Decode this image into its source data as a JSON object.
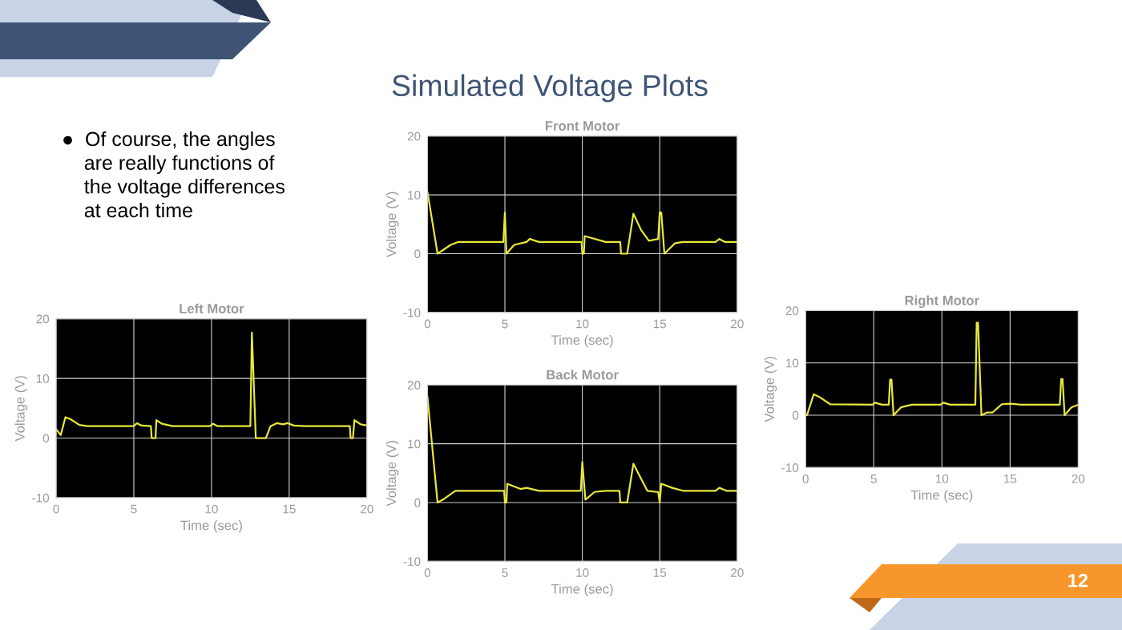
{
  "chart_data": [
    {
      "type": "other",
      "title": "Simulated Voltage Plots",
      "annotations": [
        "●  Of course, the angles\n    are really functions of\n    the voltage differences\n    at each time",
        "12"
      ]
    },
    {
      "type": "line",
      "title": "Left Motor",
      "xlabel": "Time (sec)",
      "ylabel": "Voltage (V)",
      "xlim": [
        0,
        20
      ],
      "ylim": [
        -10,
        20
      ],
      "xticks": [
        0,
        5,
        10,
        15,
        20
      ],
      "yticks": [
        -10,
        0,
        10,
        20
      ],
      "grid": true,
      "series": [
        {
          "color": "#e8e83a",
          "x": [
            0,
            0.3,
            0.6,
            0.9,
            1.5,
            2,
            5.0,
            5.2,
            5.5,
            6.1,
            6.15,
            6.4,
            6.45,
            6.8,
            7.5,
            9.9,
            10.1,
            10.4,
            12.5,
            12.6,
            12.85,
            13.5,
            13.8,
            14.2,
            14.6,
            14.9,
            15.3,
            16,
            18.9,
            18.95,
            19.1,
            19.2,
            19.6,
            20
          ],
          "values": [
            1.5,
            0.5,
            3.5,
            3.2,
            2.2,
            2.0,
            2.0,
            2.5,
            2.1,
            2.0,
            0,
            0,
            3.0,
            2.4,
            2.0,
            2.0,
            2.4,
            2.0,
            2.0,
            17.7,
            0,
            0,
            2.0,
            2.5,
            2.3,
            2.5,
            2.1,
            2.0,
            2.0,
            0,
            0,
            3.0,
            2.3,
            2.1
          ]
        }
      ]
    },
    {
      "type": "line",
      "title": "Front Motor",
      "xlabel": "Time (sec)",
      "ylabel": "Voltage (V)",
      "xlim": [
        0,
        20
      ],
      "ylim": [
        -10,
        20
      ],
      "xticks": [
        0,
        5,
        10,
        15,
        20
      ],
      "yticks": [
        -10,
        0,
        10,
        20
      ],
      "grid": true,
      "series": [
        {
          "color": "#e8e83a",
          "x": [
            0,
            0.65,
            1.5,
            2,
            4.9,
            5.0,
            5.1,
            5.6,
            6.4,
            6.6,
            7.2,
            9.95,
            10.0,
            10.1,
            10.15,
            11.5,
            12.45,
            12.5,
            12.9,
            13.3,
            13.8,
            14.3,
            14.9,
            15.0,
            15.1,
            15.3,
            16,
            16.5,
            18.6,
            18.85,
            19.2,
            20
          ],
          "values": [
            10.5,
            0,
            1.5,
            2.0,
            2.0,
            7.0,
            0,
            1.5,
            2.0,
            2.5,
            2.0,
            2.0,
            0,
            0,
            3.0,
            2.0,
            2.0,
            0,
            0,
            6.8,
            4.0,
            2.2,
            2.5,
            7.0,
            7.0,
            0,
            1.8,
            2.0,
            2.0,
            2.5,
            2.0,
            2.0
          ]
        }
      ]
    },
    {
      "type": "line",
      "title": "Back Motor",
      "xlabel": "Time (sec)",
      "ylabel": "Voltage (V)",
      "xlim": [
        0,
        20
      ],
      "ylim": [
        -10,
        20
      ],
      "xticks": [
        0,
        5,
        10,
        15,
        20
      ],
      "yticks": [
        -10,
        0,
        10,
        20
      ],
      "grid": true,
      "series": [
        {
          "color": "#e8e83a",
          "x": [
            0,
            0.65,
            1.0,
            1.8,
            4.95,
            5.0,
            5.1,
            5.15,
            6.0,
            6.4,
            7.2,
            9.9,
            10.0,
            10.2,
            10.8,
            11.5,
            12.4,
            12.45,
            12.9,
            13.3,
            13.8,
            14.2,
            14.8,
            14.9,
            15.0,
            15.1,
            15.8,
            16.5,
            18.6,
            18.85,
            19.3,
            20
          ],
          "values": [
            18,
            0,
            0.5,
            2.0,
            2.0,
            0,
            0,
            3.2,
            2.3,
            2.5,
            2.0,
            2.0,
            6.9,
            0.5,
            1.8,
            2.0,
            2.0,
            0,
            0,
            6.6,
            4.0,
            2.0,
            1.8,
            1.8,
            0,
            3.2,
            2.5,
            2.0,
            2.0,
            2.5,
            2.0,
            2.0
          ]
        }
      ]
    },
    {
      "type": "line",
      "title": "Right Motor",
      "xlabel": "Time (sec)",
      "ylabel": "Voltage (V)",
      "xlim": [
        0,
        20
      ],
      "ylim": [
        -10,
        20
      ],
      "xticks": [
        0,
        5,
        10,
        15,
        20
      ],
      "yticks": [
        -10,
        0,
        10,
        20
      ],
      "grid": true,
      "series": [
        {
          "color": "#e8e83a",
          "x": [
            0,
            0.1,
            0.6,
            1.0,
            1.8,
            4.9,
            5.1,
            5.6,
            6.1,
            6.2,
            6.3,
            6.45,
            7,
            7.8,
            9.9,
            10.1,
            10.6,
            12.45,
            12.55,
            12.65,
            12.9,
            13.3,
            13.7,
            14.4,
            15.0,
            15.8,
            18.65,
            18.75,
            18.85,
            19.0,
            19.5,
            20
          ],
          "values": [
            0,
            0,
            4.0,
            3.5,
            2.1,
            2.0,
            2.4,
            2.0,
            2.0,
            6.8,
            6.8,
            0,
            1.5,
            2.0,
            2.0,
            2.4,
            2.0,
            2.0,
            17.7,
            17.7,
            0,
            0.5,
            0.5,
            2.1,
            2.2,
            2.0,
            2.0,
            6.9,
            6.9,
            0,
            1.5,
            2.0
          ]
        }
      ]
    }
  ]
}
